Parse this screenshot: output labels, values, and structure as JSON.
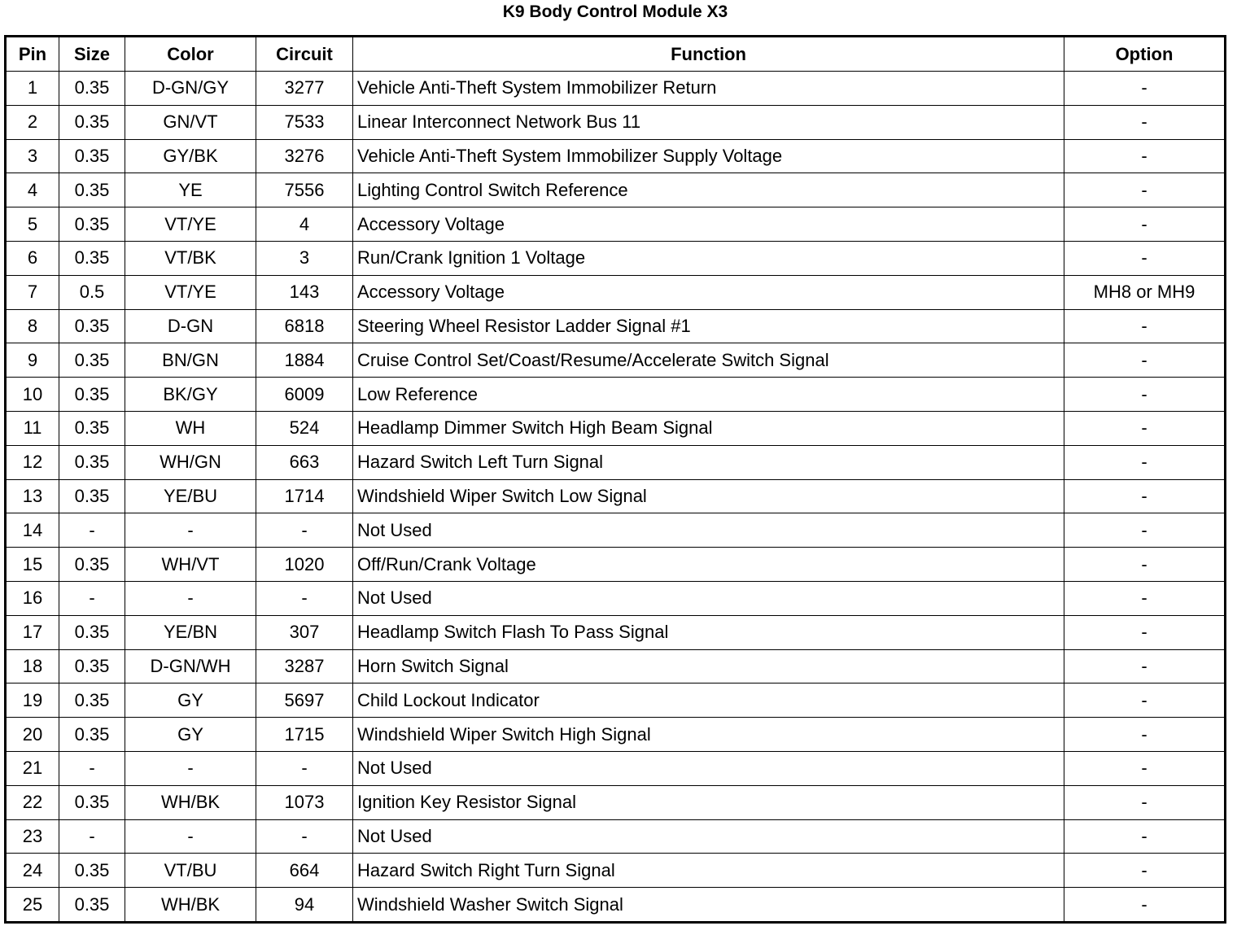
{
  "title": "K9 Body Control Module X3",
  "headers": [
    "Pin",
    "Size",
    "Color",
    "Circuit",
    "Function",
    "Option"
  ],
  "rows": [
    [
      "1",
      "0.35",
      "D-GN/GY",
      "3277",
      "Vehicle Anti-Theft System Immobilizer Return",
      "-"
    ],
    [
      "2",
      "0.35",
      "GN/VT",
      "7533",
      "Linear Interconnect Network Bus 11",
      "-"
    ],
    [
      "3",
      "0.35",
      "GY/BK",
      "3276",
      "Vehicle Anti-Theft System Immobilizer Supply Voltage",
      "-"
    ],
    [
      "4",
      "0.35",
      "YE",
      "7556",
      "Lighting Control Switch Reference",
      "-"
    ],
    [
      "5",
      "0.35",
      "VT/YE",
      "4",
      "Accessory Voltage",
      "-"
    ],
    [
      "6",
      "0.35",
      "VT/BK",
      "3",
      "Run/Crank Ignition 1 Voltage",
      "-"
    ],
    [
      "7",
      "0.5",
      "VT/YE",
      "143",
      "Accessory Voltage",
      "MH8 or MH9"
    ],
    [
      "8",
      "0.35",
      "D-GN",
      "6818",
      "Steering Wheel Resistor Ladder Signal #1",
      "-"
    ],
    [
      "9",
      "0.35",
      "BN/GN",
      "1884",
      "Cruise Control Set/Coast/Resume/Accelerate Switch Signal",
      "-"
    ],
    [
      "10",
      "0.35",
      "BK/GY",
      "6009",
      "Low Reference",
      "-"
    ],
    [
      "11",
      "0.35",
      "WH",
      "524",
      "Headlamp Dimmer Switch High Beam Signal",
      "-"
    ],
    [
      "12",
      "0.35",
      "WH/GN",
      "663",
      "Hazard Switch Left Turn Signal",
      "-"
    ],
    [
      "13",
      "0.35",
      "YE/BU",
      "1714",
      "Windshield Wiper Switch Low Signal",
      "-"
    ],
    [
      "14",
      "-",
      "-",
      "-",
      "Not Used",
      "-"
    ],
    [
      "15",
      "0.35",
      "WH/VT",
      "1020",
      "Off/Run/Crank Voltage",
      "-"
    ],
    [
      "16",
      "-",
      "-",
      "-",
      "Not Used",
      "-"
    ],
    [
      "17",
      "0.35",
      "YE/BN",
      "307",
      "Headlamp Switch Flash To Pass Signal",
      "-"
    ],
    [
      "18",
      "0.35",
      "D-GN/WH",
      "3287",
      "Horn Switch Signal",
      "-"
    ],
    [
      "19",
      "0.35",
      "GY",
      "5697",
      "Child Lockout Indicator",
      "-"
    ],
    [
      "20",
      "0.35",
      "GY",
      "1715",
      "Windshield Wiper Switch High Signal",
      "-"
    ],
    [
      "21",
      "-",
      "-",
      "-",
      "Not Used",
      "-"
    ],
    [
      "22",
      "0.35",
      "WH/BK",
      "1073",
      "Ignition Key Resistor Signal",
      "-"
    ],
    [
      "23",
      "-",
      "-",
      "-",
      "Not Used",
      "-"
    ],
    [
      "24",
      "0.35",
      "VT/BU",
      "664",
      "Hazard Switch Right Turn Signal",
      "-"
    ],
    [
      "25",
      "0.35",
      "WH/BK",
      "94",
      "Windshield Washer Switch Signal",
      "-"
    ]
  ]
}
